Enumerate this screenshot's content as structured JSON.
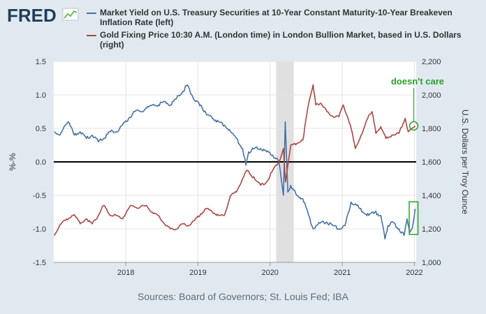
{
  "branding": {
    "logo_text": "FRED",
    "logo_icon": "line-chart-icon"
  },
  "legend": [
    {
      "label": "Market Yield on U.S. Treasury Securities at 10-Year Constant Maturity-10-Year Breakeven Inflation Rate (left)",
      "color": "#4572a7"
    },
    {
      "label": "Gold Fixing Price 10:30 A.M. (London time) in London Bullion Market, based in U.S. Dollars (right)",
      "color": "#aa4643"
    }
  ],
  "source": "Sources: Board of Governors; St. Louis Fed; IBA",
  "chart_data": {
    "type": "line",
    "xlim": [
      "2017-01-01",
      "2022-01-10"
    ],
    "x_ticks": [
      "2018",
      "2019",
      "2020",
      "2021",
      "2022"
    ],
    "left_axis": {
      "label": "%-%",
      "ylim": [
        -1.5,
        1.5
      ],
      "ticks": [
        "1.5",
        "1.0",
        "0.5",
        "0.0",
        "-0.5",
        "-1.0",
        "-1.5"
      ]
    },
    "right_axis": {
      "label": "U.S. Dollars per Troy Ounce",
      "ylim": [
        1000,
        2200
      ],
      "ticks": [
        "2,200",
        "2,000",
        "1,800",
        "1,600",
        "1,400",
        "1,200",
        "1,000"
      ]
    },
    "grid": true,
    "zero_line": 0,
    "recession_band": [
      "2020-02-01",
      "2020-04-30"
    ],
    "series": [
      {
        "name": "Market Yield on U.S. Treasury Securities at 10-Year Constant Maturity-10-Year Breakeven Inflation Rate",
        "axis": "left",
        "color": "#4572a7",
        "x": [
          "2017-01-03",
          "2017-02-01",
          "2017-03-01",
          "2017-03-15",
          "2017-04-15",
          "2017-05-15",
          "2017-06-15",
          "2017-07-15",
          "2017-08-15",
          "2017-09-10",
          "2017-10-15",
          "2017-11-15",
          "2017-12-15",
          "2018-01-15",
          "2018-02-15",
          "2018-03-15",
          "2018-04-15",
          "2018-05-15",
          "2018-06-15",
          "2018-07-15",
          "2018-08-15",
          "2018-09-15",
          "2018-10-15",
          "2018-11-08",
          "2018-12-01",
          "2018-12-20",
          "2019-01-15",
          "2019-02-15",
          "2019-03-15",
          "2019-04-15",
          "2019-05-15",
          "2019-06-15",
          "2019-07-15",
          "2019-08-15",
          "2019-09-01",
          "2019-09-15",
          "2019-10-15",
          "2019-11-15",
          "2019-12-15",
          "2020-01-15",
          "2020-02-15",
          "2020-03-09",
          "2020-03-18",
          "2020-03-31",
          "2020-04-15",
          "2020-05-15",
          "2020-06-15",
          "2020-07-15",
          "2020-08-06",
          "2020-09-15",
          "2020-10-15",
          "2020-11-15",
          "2020-12-15",
          "2021-01-15",
          "2021-02-15",
          "2021-03-15",
          "2021-04-15",
          "2021-05-15",
          "2021-06-15",
          "2021-07-15",
          "2021-08-05",
          "2021-08-20",
          "2021-09-15",
          "2021-10-15",
          "2021-11-10",
          "2021-11-25",
          "2021-12-10",
          "2021-12-20",
          "2022-01-05"
        ],
        "y": [
          0.45,
          0.4,
          0.55,
          0.6,
          0.4,
          0.45,
          0.35,
          0.4,
          0.3,
          0.35,
          0.45,
          0.45,
          0.55,
          0.65,
          0.75,
          0.75,
          0.8,
          0.85,
          0.85,
          0.9,
          0.85,
          0.95,
          1.05,
          1.15,
          1.0,
          0.9,
          0.85,
          0.7,
          0.65,
          0.6,
          0.55,
          0.45,
          0.35,
          0.2,
          -0.05,
          0.15,
          0.2,
          0.2,
          0.15,
          0.1,
          0.0,
          -0.5,
          0.6,
          -0.45,
          -0.35,
          -0.5,
          -0.55,
          -0.8,
          -1.0,
          -0.9,
          -0.9,
          -0.95,
          -1.0,
          -0.95,
          -0.6,
          -0.65,
          -0.75,
          -0.8,
          -0.75,
          -0.8,
          -1.15,
          -0.95,
          -0.9,
          -1.0,
          -1.1,
          -0.85,
          -1.05,
          -1.0,
          -0.7
        ]
      },
      {
        "name": "Gold Fixing Price 10:30 A.M. (London time) in London Bullion Market, based in U.S. Dollars",
        "axis": "right",
        "color": "#aa4643",
        "x": [
          "2017-01-03",
          "2017-02-01",
          "2017-03-01",
          "2017-04-15",
          "2017-05-15",
          "2017-06-15",
          "2017-07-15",
          "2017-08-15",
          "2017-09-10",
          "2017-10-15",
          "2017-11-15",
          "2017-12-15",
          "2018-01-25",
          "2018-02-15",
          "2018-03-15",
          "2018-04-15",
          "2018-05-15",
          "2018-06-15",
          "2018-07-15",
          "2018-08-15",
          "2018-09-15",
          "2018-10-15",
          "2018-11-15",
          "2018-12-15",
          "2019-01-15",
          "2019-02-15",
          "2019-03-15",
          "2019-04-15",
          "2019-05-15",
          "2019-06-15",
          "2019-07-15",
          "2019-08-15",
          "2019-09-05",
          "2019-10-15",
          "2019-11-15",
          "2019-12-15",
          "2020-01-15",
          "2020-02-15",
          "2020-03-09",
          "2020-03-19",
          "2020-04-15",
          "2020-05-15",
          "2020-06-15",
          "2020-07-15",
          "2020-08-06",
          "2020-08-20",
          "2020-09-15",
          "2020-10-15",
          "2020-11-15",
          "2020-12-15",
          "2021-01-06",
          "2021-02-15",
          "2021-03-08",
          "2021-04-15",
          "2021-05-15",
          "2021-06-01",
          "2021-06-20",
          "2021-07-15",
          "2021-08-10",
          "2021-09-15",
          "2021-10-15",
          "2021-11-15",
          "2021-12-01",
          "2021-12-20",
          "2022-01-05"
        ],
        "y": [
          1160,
          1225,
          1250,
          1285,
          1230,
          1260,
          1230,
          1280,
          1340,
          1280,
          1280,
          1260,
          1340,
          1330,
          1330,
          1340,
          1300,
          1280,
          1230,
          1200,
          1200,
          1230,
          1220,
          1250,
          1290,
          1320,
          1300,
          1280,
          1280,
          1400,
          1420,
          1500,
          1550,
          1500,
          1460,
          1480,
          1550,
          1600,
          1680,
          1480,
          1700,
          1710,
          1730,
          1950,
          2060,
          1940,
          1950,
          1900,
          1870,
          1870,
          1940,
          1800,
          1680,
          1780,
          1880,
          1900,
          1770,
          1810,
          1740,
          1760,
          1770,
          1860,
          1780,
          1800,
          1815
        ]
      }
    ],
    "annotation": {
      "text": "doesn't care",
      "color": "#2ca02c"
    }
  }
}
